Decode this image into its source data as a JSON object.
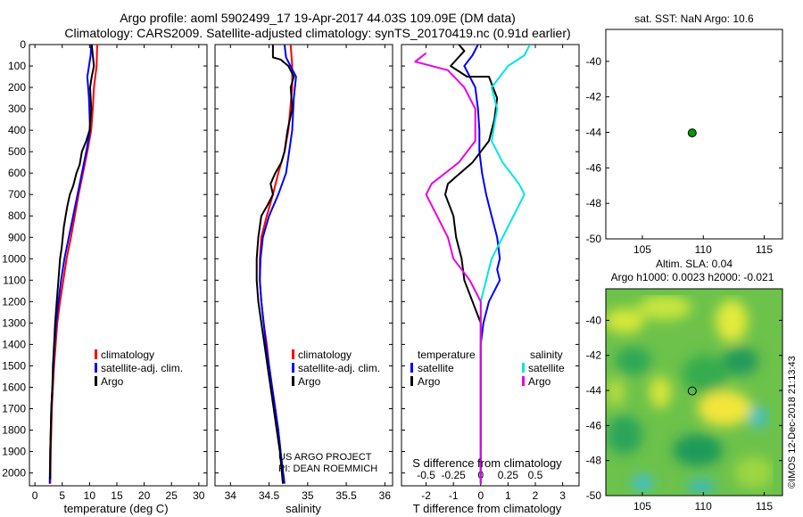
{
  "header": {
    "line1": "Argo profile: aoml 5902499_17 19-Apr-2017 44.03S 109.09E (DM data)",
    "line2": "Climatology: CARS2009. Satellite-adjusted climatology: synTS_20170419.nc (0.91d earlier)"
  },
  "credit": "©IMOS 12-Dec-2018 21:13:43",
  "colors": {
    "argo": "#000000",
    "clim": "#ff0000",
    "sat": "#0000ff",
    "sal_sat": "#00e5e5",
    "sal_argo": "#e800e8"
  },
  "chart_data": [
    {
      "type": "line",
      "id": "temperature",
      "xlabel": "temperature (deg C)",
      "ylabel": "",
      "xlim": [
        -1,
        31.5
      ],
      "ylim": [
        2060,
        0
      ],
      "xticks": [
        "0",
        "5",
        "10",
        "15",
        "20",
        "25",
        "30"
      ],
      "yticks": [
        "0",
        "100",
        "200",
        "300",
        "400",
        "500",
        "600",
        "700",
        "800",
        "900",
        "1000",
        "1100",
        "1200",
        "1300",
        "1400",
        "1500",
        "1600",
        "1700",
        "1800",
        "1900",
        "2000"
      ],
      "legend": [
        "climatology",
        "satellite-adj. clim.",
        "Argo"
      ],
      "series": [
        {
          "name": "climatology",
          "color": "#ff0000",
          "points": [
            [
              11.4,
              0
            ],
            [
              11.3,
              100
            ],
            [
              10.8,
              200
            ],
            [
              10.6,
              300
            ],
            [
              10.3,
              400
            ],
            [
              9.6,
              500
            ],
            [
              8.8,
              600
            ],
            [
              8,
              700
            ],
            [
              7.3,
              800
            ],
            [
              6.6,
              900
            ],
            [
              5.8,
              1000
            ],
            [
              5.2,
              1100
            ],
            [
              4.6,
              1200
            ],
            [
              4.1,
              1300
            ],
            [
              3.8,
              1400
            ],
            [
              3.5,
              1500
            ],
            [
              3.3,
              1600
            ],
            [
              3.1,
              1700
            ],
            [
              3,
              1800
            ],
            [
              2.9,
              1900
            ],
            [
              2.8,
              2050
            ]
          ]
        },
        {
          "name": "satellite-adj. clim.",
          "color": "#0000ff",
          "points": [
            [
              10.3,
              0
            ],
            [
              10.2,
              50
            ],
            [
              9.6,
              150
            ],
            [
              9.9,
              250
            ],
            [
              10.1,
              400
            ],
            [
              9.4,
              500
            ],
            [
              8.6,
              600
            ],
            [
              7.8,
              700
            ],
            [
              7,
              800
            ],
            [
              6.2,
              900
            ],
            [
              5.4,
              1000
            ],
            [
              4.8,
              1100
            ],
            [
              4.3,
              1200
            ],
            [
              3.9,
              1300
            ],
            [
              3.6,
              1400
            ],
            [
              3.4,
              1500
            ],
            [
              3.2,
              1600
            ],
            [
              3,
              1700
            ],
            [
              2.9,
              1800
            ],
            [
              2.8,
              1900
            ],
            [
              2.7,
              2050
            ]
          ]
        },
        {
          "name": "Argo",
          "color": "#000000",
          "points": [
            [
              10.4,
              0
            ],
            [
              10.6,
              50
            ],
            [
              10.8,
              100
            ],
            [
              10.4,
              150
            ],
            [
              10.1,
              200
            ],
            [
              10.3,
              300
            ],
            [
              10,
              400
            ],
            [
              9.4,
              450
            ],
            [
              8.6,
              500
            ],
            [
              8.2,
              560
            ],
            [
              7.6,
              600
            ],
            [
              7,
              660
            ],
            [
              6.4,
              700
            ],
            [
              5.9,
              760
            ],
            [
              5.3,
              850
            ],
            [
              4.9,
              950
            ],
            [
              4.6,
              1000
            ],
            [
              4.3,
              1100
            ],
            [
              4,
              1200
            ],
            [
              3.7,
              1300
            ],
            [
              3.5,
              1400
            ],
            [
              3.3,
              1500
            ],
            [
              3.2,
              1600
            ],
            [
              3,
              1700
            ],
            [
              2.9,
              1800
            ],
            [
              2.8,
              1900
            ],
            [
              2.8,
              2030
            ]
          ]
        }
      ]
    },
    {
      "type": "line",
      "id": "salinity",
      "xlabel": "salinity",
      "ylabel": "",
      "xlim": [
        33.8,
        36.1
      ],
      "ylim": [
        2060,
        0
      ],
      "xticks": [
        "34",
        "34.5",
        "35",
        "35.5",
        "36"
      ],
      "legend": [
        "climatology",
        "satellite-adj. clim.",
        "Argo"
      ],
      "annotation": [
        "US ARGO PROJECT",
        "PI: DEAN ROEMMICH"
      ],
      "series": [
        {
          "name": "climatology",
          "color": "#ff0000",
          "points": [
            [
              34.78,
              0
            ],
            [
              34.8,
              100
            ],
            [
              34.8,
              200
            ],
            [
              34.75,
              400
            ],
            [
              34.7,
              500
            ],
            [
              34.62,
              600
            ],
            [
              34.55,
              700
            ],
            [
              34.47,
              800
            ],
            [
              34.4,
              900
            ],
            [
              34.38,
              1000
            ],
            [
              34.38,
              1100
            ],
            [
              34.4,
              1200
            ],
            [
              34.43,
              1300
            ],
            [
              34.47,
              1400
            ],
            [
              34.5,
              1500
            ],
            [
              34.54,
              1600
            ],
            [
              34.58,
              1700
            ],
            [
              34.62,
              1800
            ],
            [
              34.65,
              1900
            ],
            [
              34.68,
              2050
            ]
          ]
        },
        {
          "name": "satellite-adj. clim.",
          "color": "#0000ff",
          "points": [
            [
              34.7,
              0
            ],
            [
              34.72,
              60
            ],
            [
              34.85,
              150
            ],
            [
              34.82,
              250
            ],
            [
              34.8,
              400
            ],
            [
              34.76,
              500
            ],
            [
              34.72,
              600
            ],
            [
              34.62,
              700
            ],
            [
              34.5,
              800
            ],
            [
              34.42,
              900
            ],
            [
              34.39,
              1000
            ],
            [
              34.38,
              1100
            ],
            [
              34.4,
              1200
            ],
            [
              34.43,
              1300
            ],
            [
              34.46,
              1400
            ],
            [
              34.5,
              1500
            ],
            [
              34.54,
              1600
            ],
            [
              34.58,
              1700
            ],
            [
              34.62,
              1800
            ],
            [
              34.65,
              1900
            ],
            [
              34.7,
              2050
            ]
          ]
        },
        {
          "name": "Argo",
          "color": "#000000",
          "points": [
            [
              34.55,
              0
            ],
            [
              34.55,
              60
            ],
            [
              34.65,
              70
            ],
            [
              34.75,
              100
            ],
            [
              34.82,
              150
            ],
            [
              34.78,
              200
            ],
            [
              34.8,
              300
            ],
            [
              34.74,
              400
            ],
            [
              34.7,
              500
            ],
            [
              34.66,
              550
            ],
            [
              34.58,
              600
            ],
            [
              34.52,
              650
            ],
            [
              34.55,
              700
            ],
            [
              34.48,
              750
            ],
            [
              34.4,
              800
            ],
            [
              34.36,
              900
            ],
            [
              34.34,
              1000
            ],
            [
              34.34,
              1100
            ],
            [
              34.36,
              1200
            ],
            [
              34.4,
              1300
            ],
            [
              34.44,
              1400
            ],
            [
              34.48,
              1500
            ],
            [
              34.52,
              1600
            ],
            [
              34.56,
              1700
            ],
            [
              34.6,
              1800
            ],
            [
              34.64,
              1900
            ],
            [
              34.68,
              2050
            ]
          ]
        }
      ]
    },
    {
      "type": "line",
      "id": "difference",
      "xlabel": "T difference from climatology",
      "label2": "S difference from climatology",
      "xlim": [
        -2.9,
        3.6
      ],
      "ylim": [
        2060,
        0
      ],
      "xticks": [
        "-2",
        "-1",
        "0",
        "1",
        "2",
        "3"
      ],
      "xticks2": [
        "-0.5",
        "-0.25",
        "0",
        "0.25",
        "0.5"
      ],
      "legend_left_title": "temperature",
      "legend_right_title": "salinity",
      "legend": [
        "satellite",
        "Argo",
        "satellite",
        "Argo"
      ],
      "series": [
        {
          "name": "T satellite",
          "color": "#0000ff",
          "points": [
            [
              -0.1,
              0
            ],
            [
              -0.3,
              50
            ],
            [
              -0.6,
              100
            ],
            [
              -0.4,
              150
            ],
            [
              -0.2,
              200
            ],
            [
              -0.1,
              300
            ],
            [
              -0.05,
              400
            ],
            [
              -0.05,
              500
            ],
            [
              0.05,
              600
            ],
            [
              0.2,
              700
            ],
            [
              0.4,
              800
            ],
            [
              0.6,
              900
            ],
            [
              0.7,
              1000
            ],
            [
              0.6,
              1050
            ],
            [
              0.7,
              1100
            ],
            [
              0.3,
              1200
            ],
            [
              0.1,
              1300
            ],
            [
              0,
              1400
            ],
            [
              0,
              1500
            ],
            [
              0,
              2050
            ]
          ]
        },
        {
          "name": "T Argo",
          "color": "#000000",
          "points": [
            [
              -0.8,
              0
            ],
            [
              -0.6,
              30
            ],
            [
              -1.1,
              100
            ],
            [
              -0.5,
              150
            ],
            [
              0.3,
              150
            ],
            [
              0.6,
              250
            ],
            [
              0.5,
              350
            ],
            [
              0.3,
              450
            ],
            [
              -0.3,
              550
            ],
            [
              -1.2,
              650
            ],
            [
              -1.3,
              700
            ],
            [
              -1,
              800
            ],
            [
              -0.9,
              900
            ],
            [
              -0.7,
              1000
            ],
            [
              -0.6,
              1100
            ],
            [
              -0.3,
              1200
            ],
            [
              0,
              1300
            ],
            [
              0,
              1400
            ],
            [
              0,
              2050
            ]
          ]
        },
        {
          "name": "S satellite",
          "color": "#00e5e5",
          "points": [
            [
              0.45,
              0
            ],
            [
              0.4,
              50
            ],
            [
              0.25,
              100
            ],
            [
              0.1,
              200
            ],
            [
              0.15,
              300
            ],
            [
              0.1,
              450
            ],
            [
              0.2,
              550
            ],
            [
              0.35,
              650
            ],
            [
              0.4,
              700
            ],
            [
              0.3,
              800
            ],
            [
              0.2,
              900
            ],
            [
              0.1,
              1000
            ],
            [
              0.05,
              1100
            ],
            [
              0,
              1200
            ],
            [
              0,
              2050
            ]
          ]
        },
        {
          "name": "S Argo",
          "color": "#e800e8",
          "points": [
            [
              -0.5,
              40
            ],
            [
              -0.6,
              80
            ],
            [
              -0.3,
              120
            ],
            [
              -0.15,
              200
            ],
            [
              -0.05,
              300
            ],
            [
              -0.05,
              450
            ],
            [
              -0.2,
              550
            ],
            [
              -0.45,
              650
            ],
            [
              -0.5,
              700
            ],
            [
              -0.4,
              800
            ],
            [
              -0.3,
              900
            ],
            [
              -0.25,
              1000
            ],
            [
              -0.1,
              1100
            ],
            [
              0,
              1200
            ],
            [
              0,
              2050
            ]
          ]
        }
      ]
    },
    {
      "type": "scatter",
      "id": "sst-map",
      "title": "sat. SST: NaN Argo: 10.6",
      "xlim": [
        102,
        116.5
      ],
      "ylim": [
        -50,
        -38.2
      ],
      "xticks": [
        "105",
        "110",
        "115"
      ],
      "yticks": [
        "-40",
        "-42",
        "-44",
        "-46",
        "-48",
        "-50"
      ],
      "points": [
        {
          "lon": 109.09,
          "lat": -44.03
        }
      ]
    },
    {
      "type": "heatmap",
      "id": "sla-map",
      "title": "Altim. SLA: 0.04",
      "subtitle": "Argo h1000: 0.0023 h2000: -0.021",
      "xlim": [
        102,
        116.5
      ],
      "ylim": [
        -50,
        -38.2
      ],
      "xticks": [
        "105",
        "110",
        "115"
      ],
      "yticks": [
        "-40",
        "-42",
        "-44",
        "-46",
        "-48",
        "-50"
      ],
      "points": [
        {
          "lon": 109.09,
          "lat": -44.03
        }
      ]
    }
  ]
}
